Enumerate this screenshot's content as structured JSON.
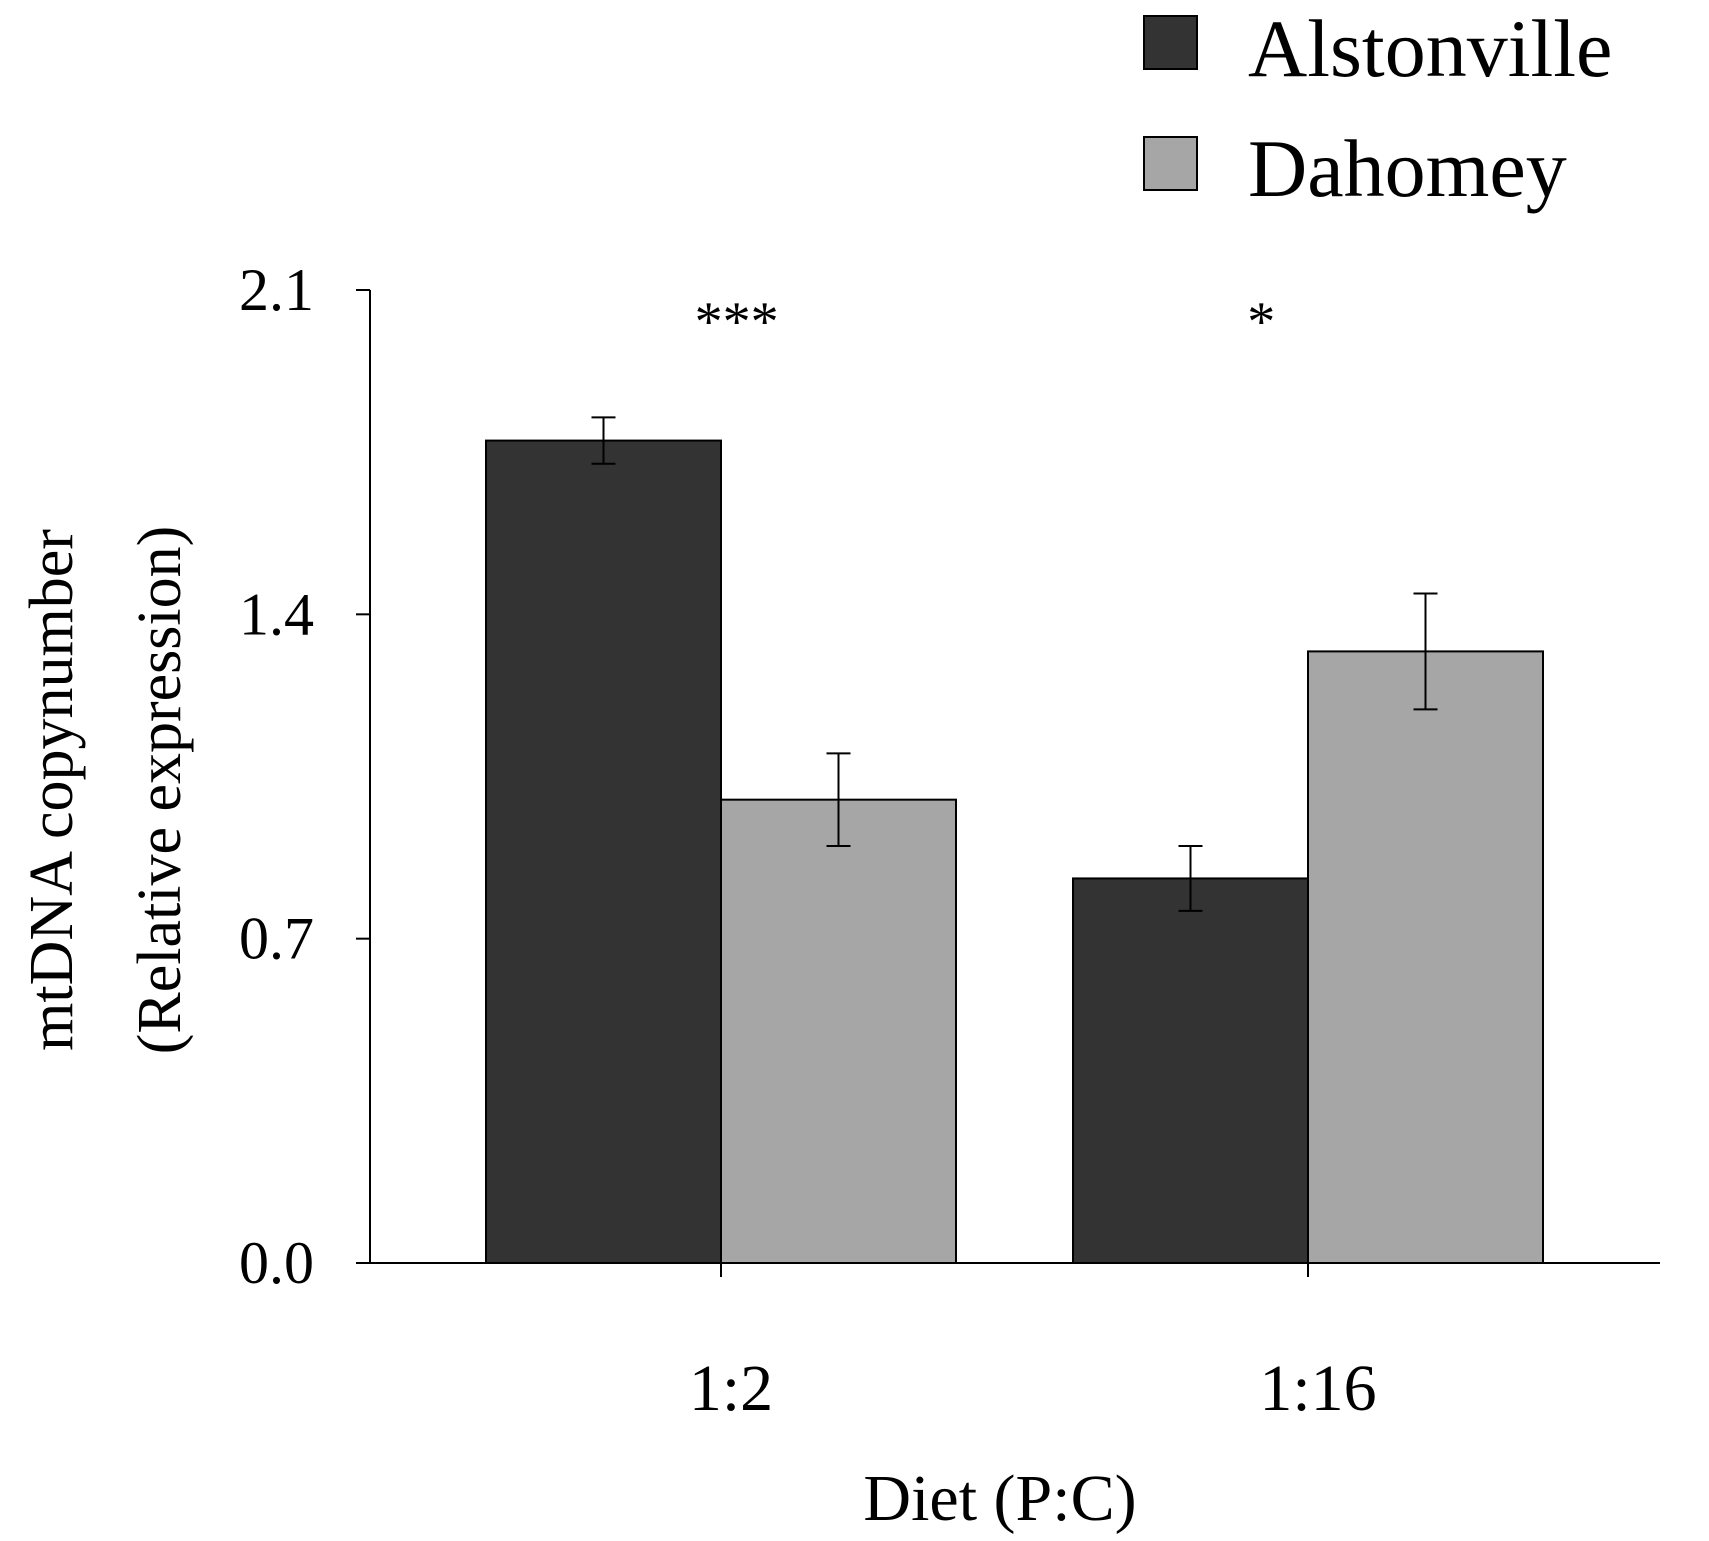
{
  "chart_data": {
    "type": "bar",
    "title": "",
    "xlabel": "Diet (P:C)",
    "ylabel": [
      "mtDNA copynumber",
      "(Relative expression)"
    ],
    "ylim": [
      0.0,
      2.1
    ],
    "yticks": [
      0.0,
      0.7,
      1.4,
      2.1
    ],
    "ytick_labels": [
      "0.0",
      "0.7",
      "1.4",
      "2.1"
    ],
    "categories": [
      "1:2",
      "1:16"
    ],
    "series": [
      {
        "name": "Alstonville",
        "values": [
          1.775,
          0.83
        ],
        "errors": [
          0.05,
          0.07
        ],
        "color": "#333333"
      },
      {
        "name": "Dahomey",
        "values": [
          1.0,
          1.32
        ],
        "errors": [
          0.1,
          0.125
        ],
        "color": "#a6a6a6"
      }
    ],
    "significance": [
      "***",
      "*"
    ],
    "legend": {
      "position": "top-right",
      "entries": [
        "Alstonville",
        "Dahomey"
      ]
    },
    "grid": false
  }
}
